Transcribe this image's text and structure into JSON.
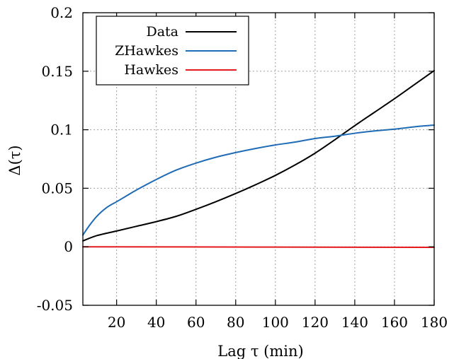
{
  "chart_data": {
    "type": "line",
    "xlabel": "Lag τ (min)",
    "ylabel": "Δ(τ)",
    "xlim": [
      3,
      180
    ],
    "ylim": [
      -0.05,
      0.2
    ],
    "xticks": [
      20,
      40,
      60,
      80,
      100,
      120,
      140,
      160,
      180
    ],
    "yticks": [
      -0.05,
      0,
      0.05,
      0.1,
      0.15,
      0.2
    ],
    "xtick_labels": [
      "20",
      "40",
      "60",
      "80",
      "100",
      "120",
      "140",
      "160",
      "180"
    ],
    "ytick_labels": [
      "-0.05",
      "0",
      "0.05",
      "0.1",
      "0.15",
      "0.2"
    ],
    "grid": true,
    "legend_position": "top-left",
    "series": [
      {
        "name": "Data",
        "color": "#000000",
        "x": [
          3,
          10,
          20,
          30,
          40,
          50,
          60,
          70,
          80,
          90,
          100,
          110,
          120,
          130,
          140,
          150,
          160,
          170,
          180
        ],
        "y": [
          0.005,
          0.0095,
          0.0135,
          0.0175,
          0.0215,
          0.026,
          0.032,
          0.0385,
          0.0455,
          0.053,
          0.061,
          0.07,
          0.08,
          0.0915,
          0.1035,
          0.115,
          0.1265,
          0.1385,
          0.1505
        ]
      },
      {
        "name": "ZHawkes",
        "color": "#1f6bb5",
        "x": [
          3,
          6,
          10,
          15,
          20,
          25,
          30,
          40,
          50,
          60,
          70,
          80,
          90,
          100,
          110,
          120,
          130,
          140,
          150,
          160,
          170,
          180
        ],
        "y": [
          0.01,
          0.0175,
          0.026,
          0.0335,
          0.0385,
          0.0435,
          0.0485,
          0.0575,
          0.0655,
          0.0715,
          0.0765,
          0.0805,
          0.084,
          0.087,
          0.0895,
          0.0925,
          0.0945,
          0.097,
          0.099,
          0.1005,
          0.1025,
          0.104
        ]
      },
      {
        "name": "Hawkes",
        "color": "#e41a1c",
        "x": [
          3,
          180
        ],
        "y": [
          0.0,
          -0.0005
        ]
      }
    ]
  }
}
